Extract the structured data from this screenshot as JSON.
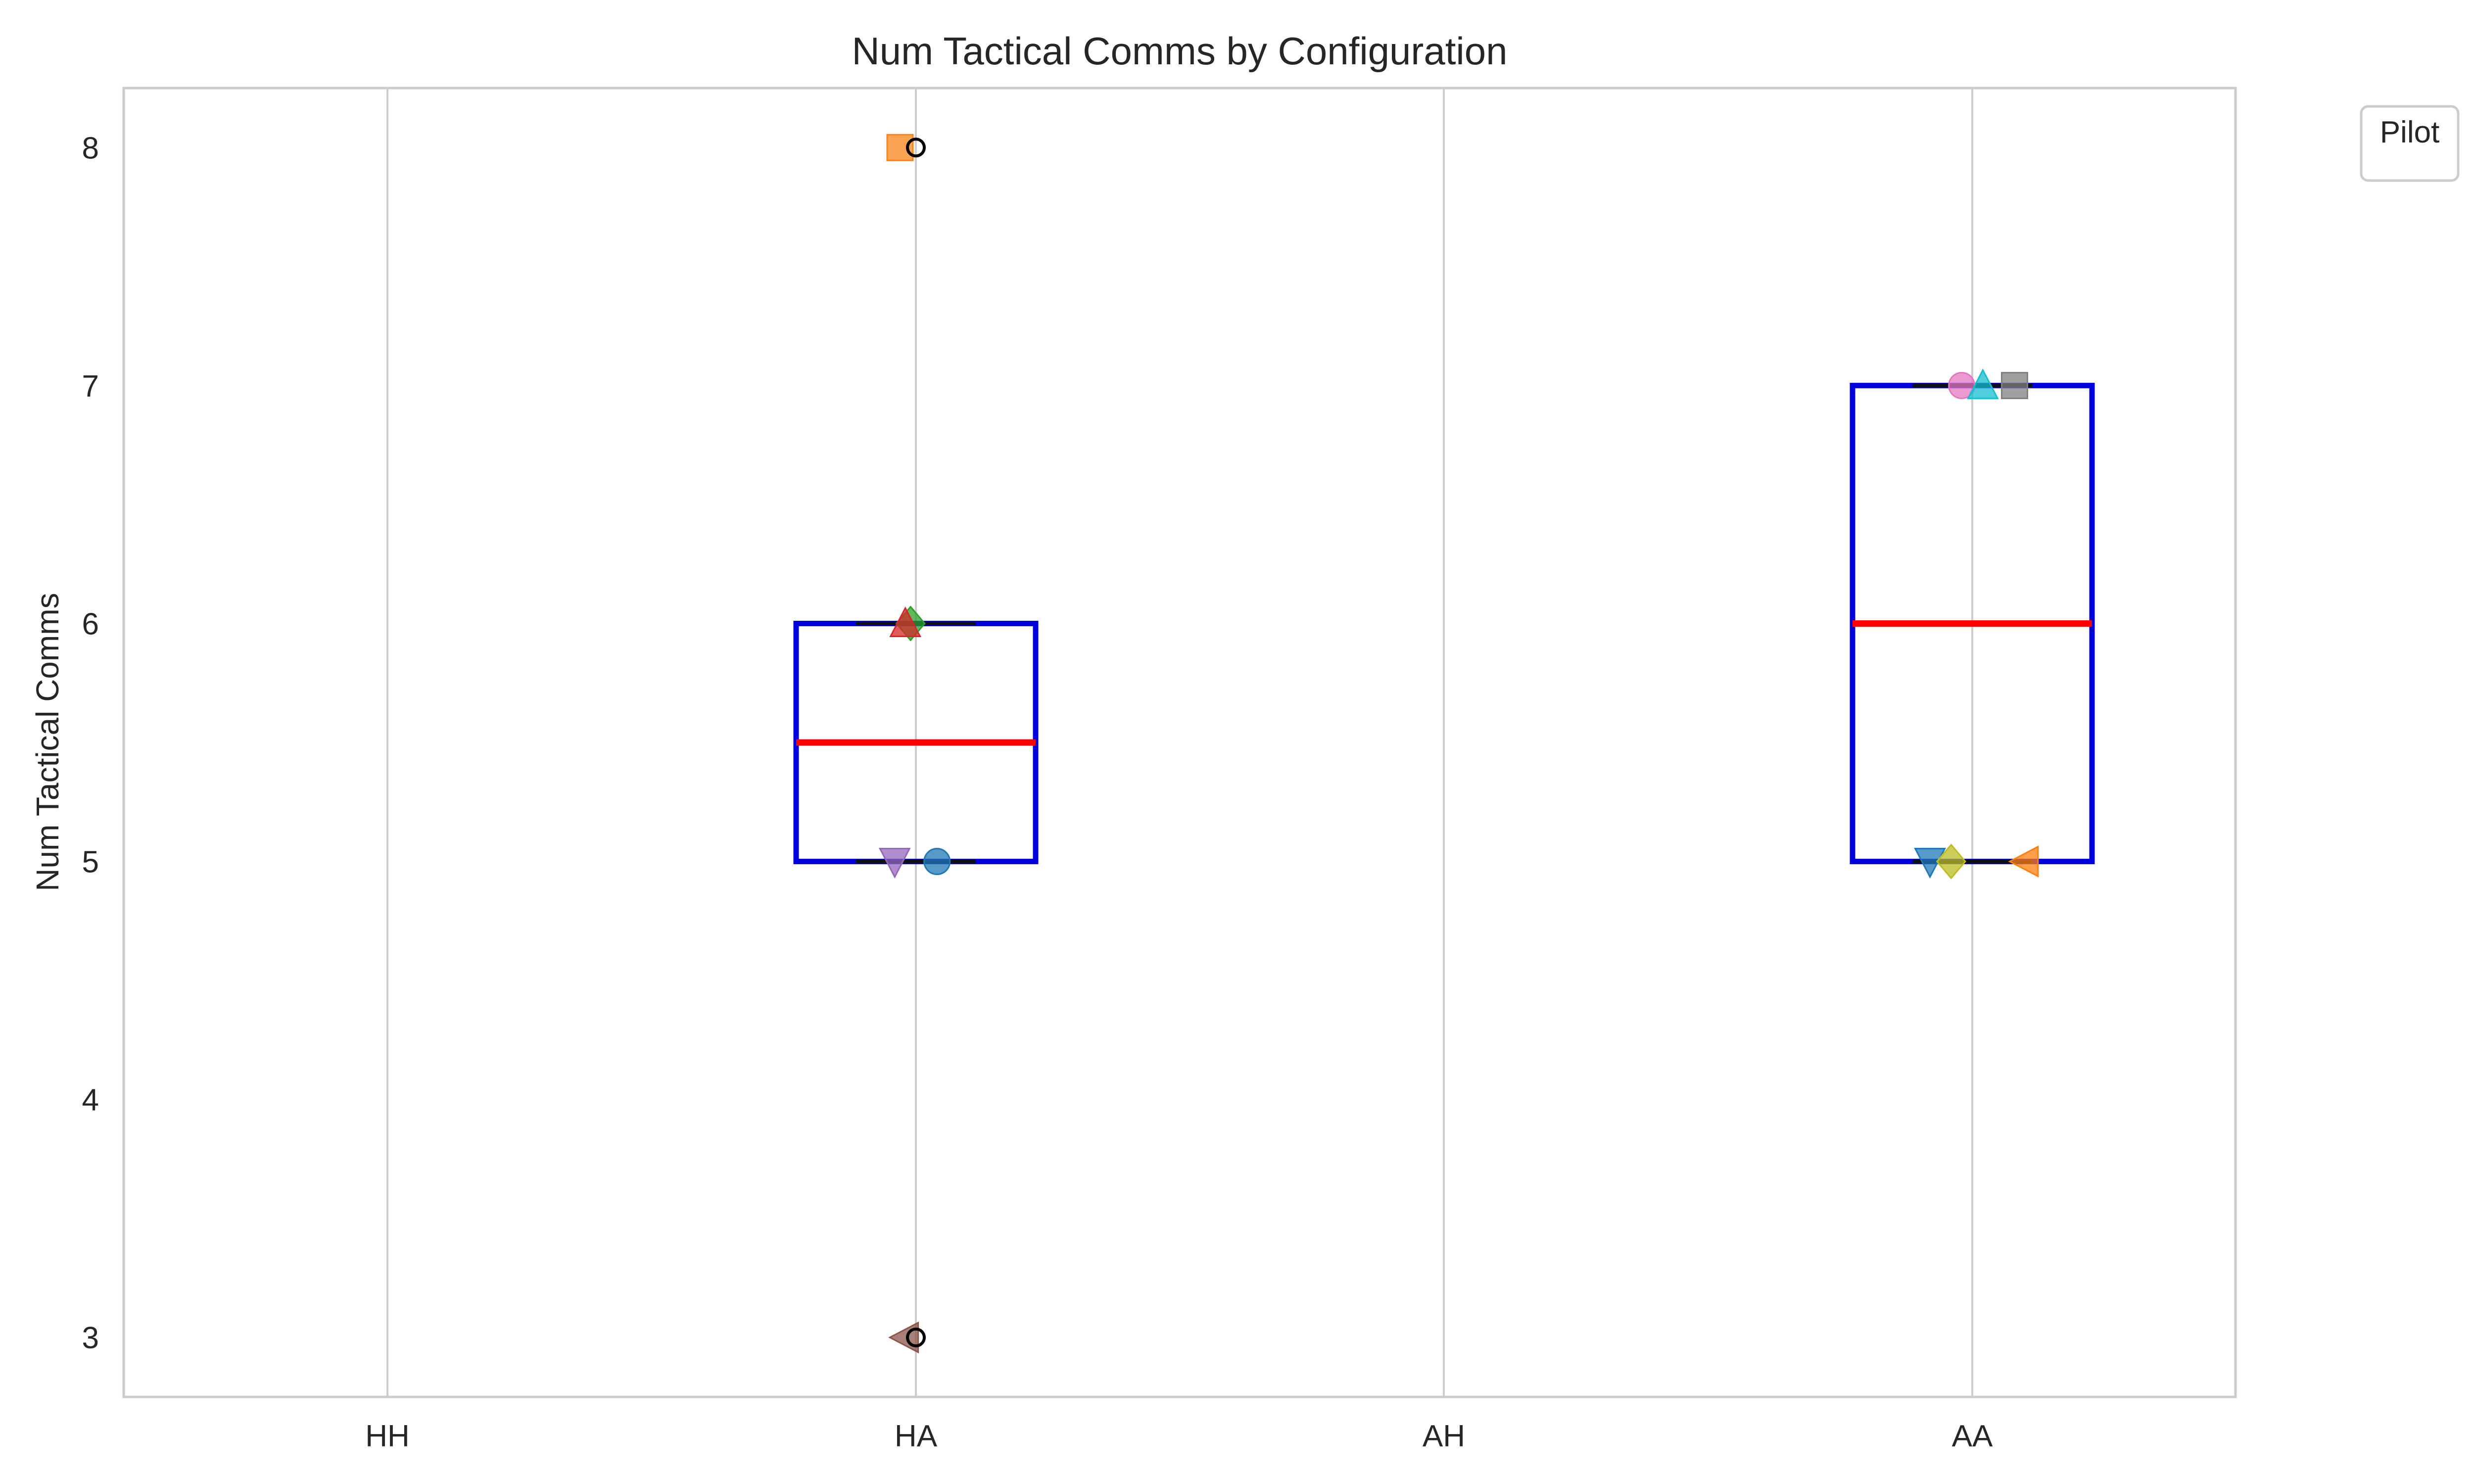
{
  "chart_data": {
    "type": "box",
    "title": "Num Tactical Comms by Configuration",
    "xlabel": "",
    "ylabel": "Num Tactical Comms",
    "categories": [
      "HH",
      "HA",
      "AH",
      "AA"
    ],
    "ylim": [
      2.75,
      8.25
    ],
    "yticks": [
      3,
      4,
      5,
      6,
      7,
      8
    ],
    "grid": "vertical",
    "legend": {
      "title": "Pilot",
      "placement": "outside-top-right",
      "entries": []
    },
    "box_color": "#0000dd",
    "median_color": "#ff0000",
    "boxes": [
      {
        "category": "HA",
        "q1": 5,
        "median": 5.5,
        "q3": 6,
        "whisker_low": 5,
        "whisker_high": 6,
        "outliers": [
          8,
          3
        ]
      },
      {
        "category": "AA",
        "q1": 5,
        "median": 6,
        "q3": 7,
        "whisker_low": 5,
        "whisker_high": 7,
        "outliers": []
      }
    ],
    "points": [
      {
        "category": "HA",
        "jitter": -0.03,
        "y": 8,
        "marker": "square",
        "color": "#f58518"
      },
      {
        "category": "HA",
        "jitter": -0.01,
        "y": 6,
        "marker": "diamond",
        "color": "#2ca02c"
      },
      {
        "category": "HA",
        "jitter": -0.02,
        "y": 6,
        "marker": "triangle-up",
        "color": "#d62728"
      },
      {
        "category": "HA",
        "jitter": -0.04,
        "y": 5,
        "marker": "triangle-down",
        "color": "#9467bd"
      },
      {
        "category": "HA",
        "jitter": 0.04,
        "y": 5,
        "marker": "circle",
        "color": "#1f77b4"
      },
      {
        "category": "HA",
        "jitter": -0.02,
        "y": 3,
        "marker": "triangle-left",
        "color": "#8c564b"
      },
      {
        "category": "AA",
        "jitter": -0.02,
        "y": 7,
        "marker": "circle",
        "color": "#e377c2"
      },
      {
        "category": "AA",
        "jitter": 0.02,
        "y": 7,
        "marker": "triangle-up",
        "color": "#17becf"
      },
      {
        "category": "AA",
        "jitter": 0.08,
        "y": 7,
        "marker": "square",
        "color": "#7f7f7f"
      },
      {
        "category": "AA",
        "jitter": -0.08,
        "y": 5,
        "marker": "triangle-down",
        "color": "#1f77b4"
      },
      {
        "category": "AA",
        "jitter": -0.04,
        "y": 5,
        "marker": "diamond",
        "color": "#bcbd22"
      },
      {
        "category": "AA",
        "jitter": 0.1,
        "y": 5,
        "marker": "triangle-left",
        "color": "#ff7f0e"
      }
    ]
  }
}
